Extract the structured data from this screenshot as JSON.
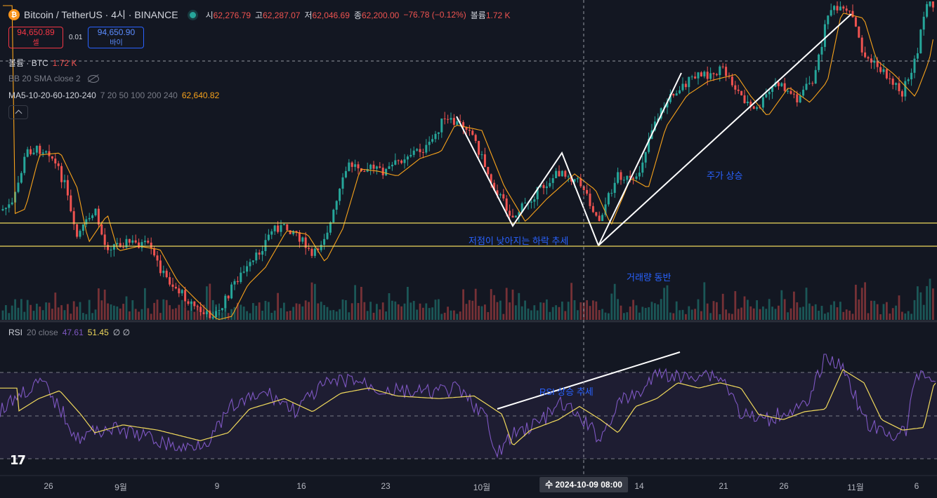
{
  "header": {
    "symbol_icon": "₿",
    "symbol": "Bitcoin / TetherUS · 4시 · BINANCE",
    "open_label": "시",
    "open": "62,276.79",
    "high_label": "고",
    "high": "62,287.07",
    "low_label": "저",
    "low": "62,046.69",
    "close_label": "종",
    "close": "62,200.00",
    "change": "−76.78 (−0.12%)",
    "volume_label": "볼륨",
    "volume": "1.72 K"
  },
  "trade": {
    "sell_price": "94,650.89",
    "sell_label": "셀",
    "spread": "0.01",
    "buy_price": "94,650.90",
    "buy_label": "바이"
  },
  "indicators": {
    "volume_title": "볼륨 · BTC",
    "volume_value": "1.72 K",
    "bb_title": "BB 20 SMA close 2",
    "ma_title": "MA5-10-20-60-120-240",
    "ma_params": "7 20 50 100 200 240",
    "ma_value": "62,640.82",
    "rsi_title": "RSI",
    "rsi_params": "20 close",
    "rsi_value": "47.61",
    "rsi_ma_value": "51.45",
    "rsi_extra": "∅ ∅"
  },
  "annotations": {
    "lower_lows": "저점이 낮아지는 하락 추세",
    "price_rise": "주가 상승",
    "volume_along": "거래량 동반",
    "rsi_rise": "RSI 상승 추세"
  },
  "xaxis": {
    "ticks": [
      "26",
      "9월",
      "9",
      "16",
      "23",
      "10월",
      "14",
      "21",
      "26",
      "11월",
      "6"
    ],
    "cursor_label": "수 2024-10-09   08:00"
  },
  "colors": {
    "background": "#131722",
    "up": "#26a69a",
    "down": "#ef5350",
    "ma": "#f7a21b",
    "support": "#f0d95c",
    "rsi": "#7e57c2",
    "rsi_ma": "#f0d95c",
    "annotation": "#2962ff",
    "trendline": "#ffffff"
  },
  "chart_data": {
    "type": "candlestick",
    "series_note": "",
    "support_levels": [
      57800,
      56400
    ],
    "rsi_bands": [
      70,
      50,
      30
    ]
  }
}
